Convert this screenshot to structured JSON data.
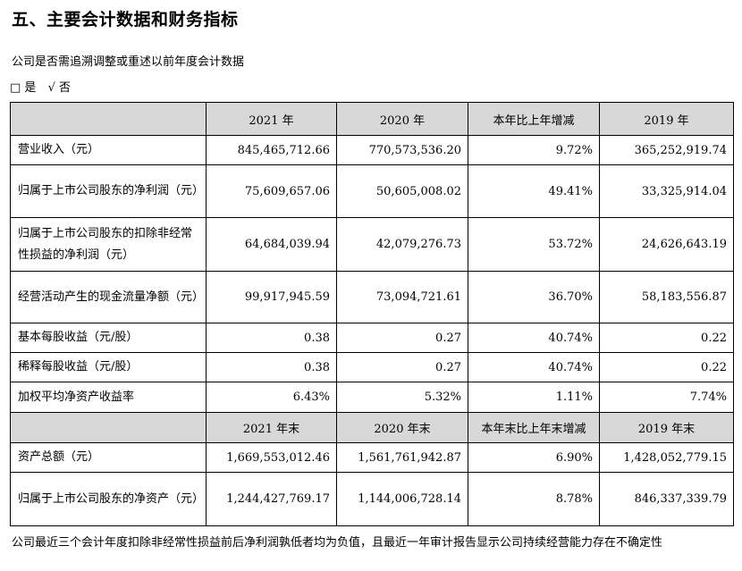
{
  "section_title": "五、主要会计数据和财务指标",
  "restate_question": "公司是否需追溯调整或重述以前年度会计数据",
  "choices": [
    "□ 是",
    "√ 否"
  ],
  "header1": [
    "",
    "2021 年",
    "2020 年",
    "本年比上年增减",
    "2019 年"
  ],
  "rows1": [
    {
      "label": "营业收入（元）",
      "v2021": "845,465,712.66",
      "v2020": "770,573,536.20",
      "change": "9.72%",
      "v2019": "365,252,919.74"
    },
    {
      "label": "归属于上市公司股东的净利润（元）",
      "v2021": "75,609,657.06",
      "v2020": "50,605,008.02",
      "change": "49.41%",
      "v2019": "33,325,914.04"
    },
    {
      "label": "归属于上市公司股东的扣除非经常性损益的净利润（元）",
      "v2021": "64,684,039.94",
      "v2020": "42,079,276.73",
      "change": "53.72%",
      "v2019": "24,626,643.19"
    },
    {
      "label": "经营活动产生的现金流量净额（元）",
      "v2021": "99,917,945.59",
      "v2020": "73,094,721.61",
      "change": "36.70%",
      "v2019": "58,183,556.87"
    },
    {
      "label": "基本每股收益（元/股）",
      "v2021": "0.38",
      "v2020": "0.27",
      "change": "40.74%",
      "v2019": "0.22"
    },
    {
      "label": "稀释每股收益（元/股）",
      "v2021": "0.38",
      "v2020": "0.27",
      "change": "40.74%",
      "v2019": "0.22"
    },
    {
      "label": "加权平均净资产收益率",
      "v2021": "6.43%",
      "v2020": "5.32%",
      "change": "1.11%",
      "v2019": "7.74%"
    }
  ],
  "header2": [
    "",
    "2021 年末",
    "2020 年末",
    "本年末比上年末增减",
    "2019 年末"
  ],
  "rows2": [
    {
      "label": "资产总额（元）",
      "v2021": "1,669,553,012.46",
      "v2020": "1,561,761,942.87",
      "change": "6.90%",
      "v2019": "1,428,052,779.15"
    },
    {
      "label": "归属于上市公司股东的净资产（元）",
      "v2021": "1,244,427,769.17",
      "v2020": "1,144,006,728.14",
      "change": "8.78%",
      "v2019": "846,337,339.79"
    }
  ],
  "footer_note": "公司最近三个会计年度扣除非经常性损益前后净利润孰低者均为负值，且最近一年审计报告显示公司持续经营能力存在不确定性"
}
